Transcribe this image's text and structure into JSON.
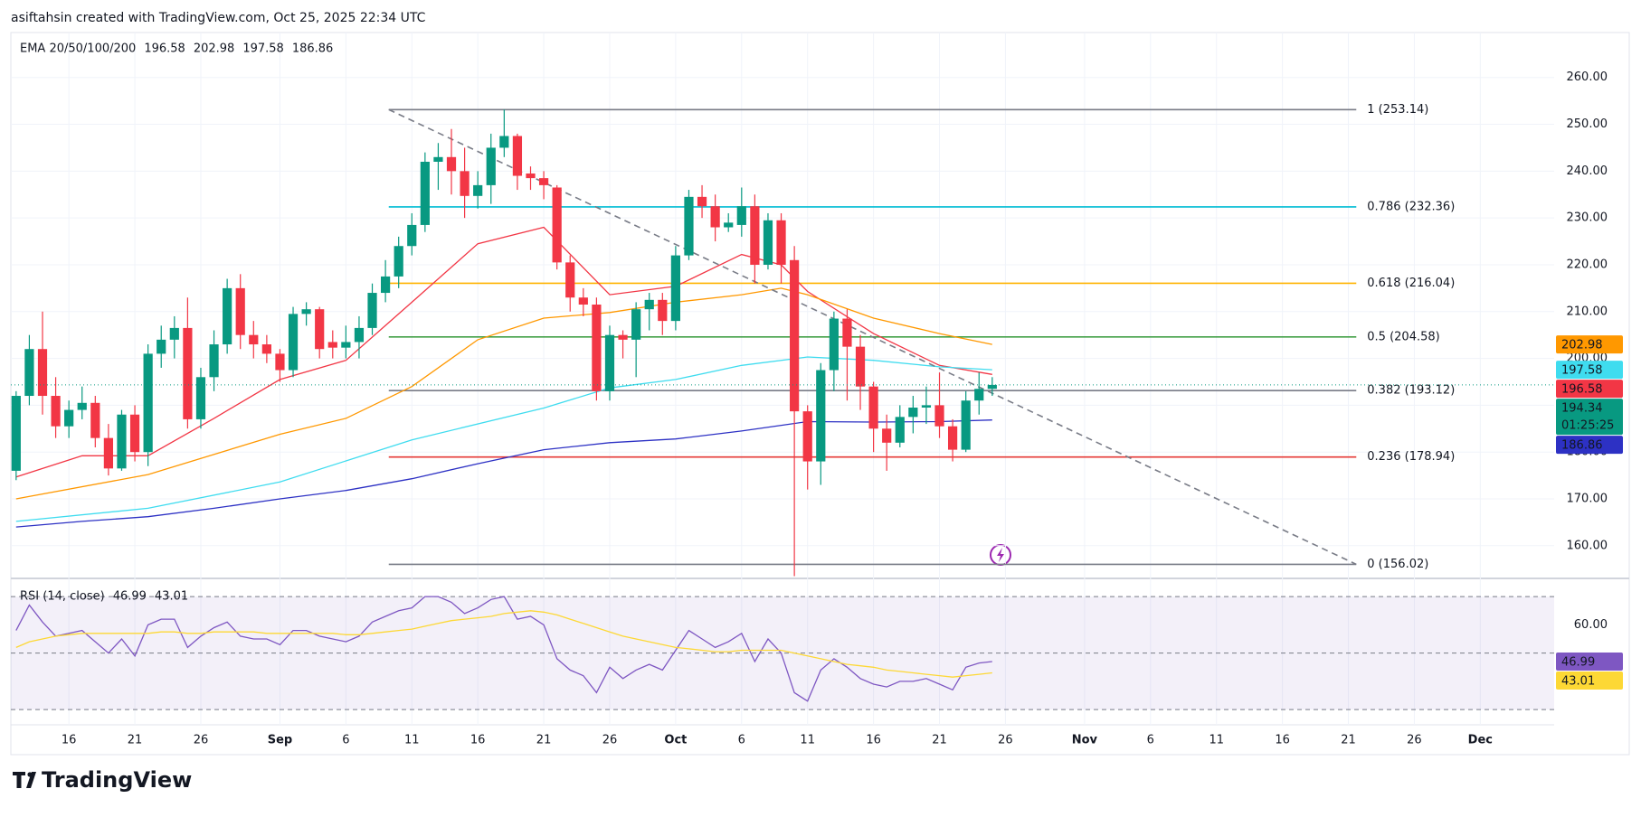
{
  "header": "asiftahsin created with TradingView.com, Oct 25, 2025 22:34 UTC",
  "logo": "TradingView",
  "chart_data": [
    {
      "type": "candlestick",
      "title": "EMA 20/50/100/200",
      "open": [
        176,
        192,
        202,
        192,
        185.5,
        189,
        190.5,
        183,
        176.5,
        188,
        180,
        201,
        204,
        206.5,
        187,
        196,
        203,
        215,
        205,
        203,
        201,
        197.5,
        209.5,
        210.5,
        203.5,
        202.3,
        203.5,
        206.5,
        214,
        217.5,
        224,
        228.5,
        242,
        243,
        240,
        234.7,
        237,
        245,
        247.5,
        239.5,
        238.5,
        236.5,
        220.5,
        213,
        211.5,
        193,
        205,
        204,
        210.5,
        212.5,
        208,
        222,
        234.5,
        232.5,
        228,
        228.5,
        232.5,
        220,
        229.5,
        221,
        188.7,
        178,
        197.5,
        208.5,
        202.5,
        194,
        185,
        182,
        187.5,
        189.5,
        190,
        185.5,
        180.5,
        191,
        193.5
      ],
      "high": [
        193,
        205,
        210,
        196,
        191,
        194,
        192,
        186,
        189,
        190,
        203,
        207,
        209,
        213,
        198,
        206,
        217,
        218,
        208,
        205,
        202,
        211,
        212,
        211,
        206,
        207,
        209,
        216,
        221,
        226,
        231,
        244,
        246,
        249,
        245,
        240,
        248,
        253.14,
        248,
        241,
        240,
        237,
        222,
        215,
        213,
        207,
        206,
        212,
        214,
        214,
        224,
        236,
        237,
        235,
        231,
        236.5,
        235,
        231,
        231,
        224,
        190,
        199,
        210,
        210.5,
        205,
        195,
        188,
        190,
        192,
        194,
        197,
        187,
        193,
        197,
        196
      ],
      "low": [
        174,
        190,
        188,
        183,
        183,
        187,
        181,
        175,
        176,
        178,
        177,
        198,
        200,
        185,
        185,
        193,
        201,
        202,
        200,
        199,
        195,
        196,
        207,
        200,
        200,
        200,
        200,
        205,
        212,
        215,
        222,
        227,
        236,
        235,
        230,
        232,
        233,
        243,
        236,
        236,
        234,
        219,
        210,
        209,
        191,
        191,
        200,
        196,
        206,
        205,
        206,
        221,
        230,
        225,
        227,
        226,
        216,
        219,
        216,
        153.5,
        172,
        173,
        193,
        191,
        189,
        180,
        176,
        181,
        184,
        186,
        183,
        178,
        180,
        188,
        192
      ],
      "close": [
        192,
        202,
        192,
        185.5,
        189,
        190.5,
        183,
        176.5,
        188,
        180,
        201,
        204,
        206.5,
        187,
        196,
        203,
        215,
        205,
        203,
        201,
        197.5,
        209.5,
        210.5,
        202,
        202.3,
        203.5,
        206.5,
        214,
        217.5,
        224,
        228.5,
        242,
        243,
        240,
        234.7,
        237,
        245,
        247.5,
        239,
        238.5,
        237,
        220.5,
        213,
        211.5,
        193,
        205,
        204,
        210.5,
        212.5,
        208,
        222,
        234.5,
        232.5,
        228,
        229,
        232.5,
        220,
        229.5,
        220,
        188.7,
        178,
        197.5,
        208.5,
        202.5,
        194,
        185,
        182,
        187.5,
        189.5,
        190,
        185.5,
        180.5,
        191,
        193.5,
        194.34
      ],
      "up_color": "#089981",
      "down_color": "#f23645",
      "series": [
        {
          "color": "#f23645",
          "x": [
            0,
            5,
            10,
            15,
            20,
            25,
            30,
            35,
            40,
            45,
            50,
            55,
            58,
            60,
            65,
            70,
            74
          ],
          "values": [
            174.7,
            179.2,
            179.2,
            187.2,
            195.5,
            199.6,
            212,
            224.5,
            228,
            213.6,
            215.4,
            222.2,
            220,
            214.3,
            205.3,
            198.5,
            196.58
          ]
        },
        {
          "color": "#ff9800",
          "x": [
            0,
            10,
            20,
            25,
            30,
            35,
            40,
            45,
            50,
            55,
            58,
            60,
            65,
            70,
            74
          ],
          "values": [
            170,
            175.2,
            183.8,
            187.2,
            194,
            204,
            208.6,
            209.8,
            212,
            213.6,
            215,
            213.6,
            208.6,
            205.3,
            202.98
          ]
        },
        {
          "color": "#3fdcef",
          "x": [
            0,
            10,
            20,
            30,
            40,
            45,
            50,
            55,
            60,
            65,
            70,
            74
          ],
          "values": [
            165.2,
            168,
            173.6,
            182.6,
            189.4,
            193.7,
            195.5,
            198.5,
            200.3,
            199.6,
            198.2,
            197.58
          ]
        },
        {
          "color": "#2d31c4",
          "x": [
            0,
            5,
            10,
            15,
            20,
            25,
            30,
            35,
            40,
            45,
            50,
            55,
            60,
            65,
            70,
            74
          ],
          "values": [
            164,
            165.2,
            166.2,
            168,
            170,
            171.8,
            174.3,
            177.5,
            180.5,
            182,
            182.8,
            184.5,
            186.5,
            186.4,
            186.5,
            186.86
          ]
        }
      ],
      "countdown": "01:25:25",
      "fib": {
        "x": [
          28.25,
          101.6
        ],
        "levels": [
          {
            "value": 253.14,
            "label": "1 (253.14)",
            "color": "#787b86"
          },
          {
            "value": 232.36,
            "label": "0.786 (232.36)",
            "color": "#00bcd4"
          },
          {
            "value": 216.04,
            "label": "0.618 (216.04)",
            "color": "#ffb300"
          },
          {
            "value": 204.58,
            "label": "0.5 (204.58)",
            "color": "#43a047"
          },
          {
            "value": 193.12,
            "label": "0.382 (193.12)",
            "color": "#787b86"
          },
          {
            "value": 178.94,
            "label": "0.236 (178.94)",
            "color": "#e53935"
          },
          {
            "value": 156.02,
            "label": "0 (156.02)",
            "color": "#787b86"
          }
        ]
      },
      "trendline": {
        "x": [
          28.25,
          101.6
        ],
        "y": [
          253.14,
          156.02
        ],
        "color": "#787b86"
      },
      "xlim": [
        -0.4,
        116.6
      ],
      "xticks": [
        {
          "value": 4,
          "label": "16"
        },
        {
          "value": 9,
          "label": "21"
        },
        {
          "value": 14,
          "label": "26"
        },
        {
          "value": 20,
          "label": "Sep"
        },
        {
          "value": 25,
          "label": "6"
        },
        {
          "value": 30,
          "label": "11"
        },
        {
          "value": 35,
          "label": "16"
        },
        {
          "value": 40,
          "label": "21"
        },
        {
          "value": 45,
          "label": "26"
        },
        {
          "value": 50,
          "label": "Oct"
        },
        {
          "value": 55,
          "label": "6"
        },
        {
          "value": 60,
          "label": "11"
        },
        {
          "value": 65,
          "label": "16"
        },
        {
          "value": 70,
          "label": "21"
        },
        {
          "value": 75,
          "label": "26"
        },
        {
          "value": 81,
          "label": "Nov"
        },
        {
          "value": 86,
          "label": "6"
        },
        {
          "value": 91,
          "label": "11"
        },
        {
          "value": 96,
          "label": "16"
        },
        {
          "value": 101,
          "label": "21"
        },
        {
          "value": 106,
          "label": "26"
        },
        {
          "value": 111,
          "label": "Dec"
        }
      ],
      "ylim": [
        153.4,
        269.6
      ],
      "yticks": [
        {
          "value": 160,
          "label": "160.00"
        },
        {
          "value": 170,
          "label": "170.00"
        },
        {
          "value": 180,
          "label": "180.00"
        },
        {
          "value": 190,
          "label": "190.00"
        },
        {
          "value": 200,
          "label": "200.00"
        },
        {
          "value": 210,
          "label": "210.00"
        },
        {
          "value": 220,
          "label": "220.00"
        },
        {
          "value": 230,
          "label": "230.00"
        },
        {
          "value": 240,
          "label": "240.00"
        },
        {
          "value": 250,
          "label": "250.00"
        },
        {
          "value": 260,
          "label": "260.00"
        }
      ],
      "grid": true
    },
    {
      "type": "line",
      "title": "RSI (14, close)",
      "series": [
        {
          "color": "#7e57c2",
          "values": [
            58,
            67,
            61,
            56,
            57,
            58,
            54,
            50,
            55,
            49,
            60,
            62,
            62,
            52,
            56,
            59,
            61,
            56,
            55,
            55,
            53,
            58,
            58,
            56,
            55,
            54,
            56,
            61,
            63,
            65,
            66,
            70,
            70,
            68,
            64,
            66,
            69,
            70,
            62,
            63,
            60,
            48,
            44,
            42,
            36,
            45,
            41,
            44,
            46,
            44,
            51,
            58,
            55,
            52,
            54,
            57,
            47,
            55,
            50,
            36,
            33,
            44,
            48,
            45,
            41,
            39,
            38,
            40,
            40,
            41,
            39,
            37,
            45,
            46.5,
            46.99
          ]
        },
        {
          "color": "#fdd835",
          "values": [
            52,
            54,
            55,
            56,
            56.5,
            57,
            57,
            57,
            57,
            57,
            57,
            57.5,
            57.5,
            57,
            57,
            57.5,
            57.5,
            57.5,
            57.5,
            57,
            57,
            57,
            57,
            57,
            57,
            56.5,
            56.5,
            57,
            57.5,
            58,
            58.5,
            59.5,
            60.5,
            61.5,
            62,
            62.5,
            63,
            64,
            64.5,
            65,
            64.5,
            63.5,
            62,
            60.5,
            59,
            57.5,
            56,
            55,
            54,
            53,
            52,
            51.5,
            51,
            50.5,
            50.5,
            51,
            51,
            51,
            51,
            50,
            49,
            48,
            47,
            46,
            45.5,
            45,
            44,
            43.5,
            43,
            42.5,
            42,
            41.5,
            42,
            42.5,
            43.01
          ]
        }
      ],
      "bands": [
        70,
        50,
        30
      ],
      "band_fill": "#7e57c2",
      "ylim": [
        24.6,
        75.8
      ],
      "yticks": [
        {
          "value": 60,
          "label": "60.00"
        }
      ]
    }
  ]
}
